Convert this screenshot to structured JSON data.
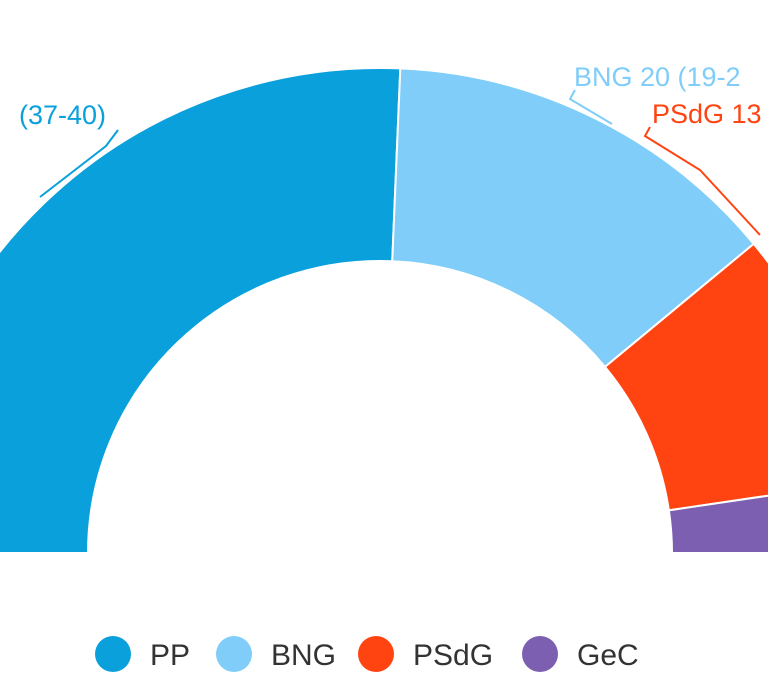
{
  "chart_data": {
    "type": "pie",
    "style": "half-donut (hemicycle)",
    "series": [
      {
        "name": "PP",
        "value": 38.5,
        "label": "(37-40)",
        "color": "#0aa0db"
      },
      {
        "name": "BNG",
        "value": 20,
        "label": "BNG 20 (19-2",
        "color": "#7fcdf8"
      },
      {
        "name": "PSdG",
        "value": 13,
        "label": "PSdG 13",
        "color": "#ff4412"
      },
      {
        "name": "GeC",
        "value": 3.5,
        "label": "",
        "color": "#7c5fb1"
      }
    ],
    "legend": {
      "position": "bottom",
      "items": [
        "PP",
        "BNG",
        "PSdG",
        "GeC"
      ]
    }
  }
}
